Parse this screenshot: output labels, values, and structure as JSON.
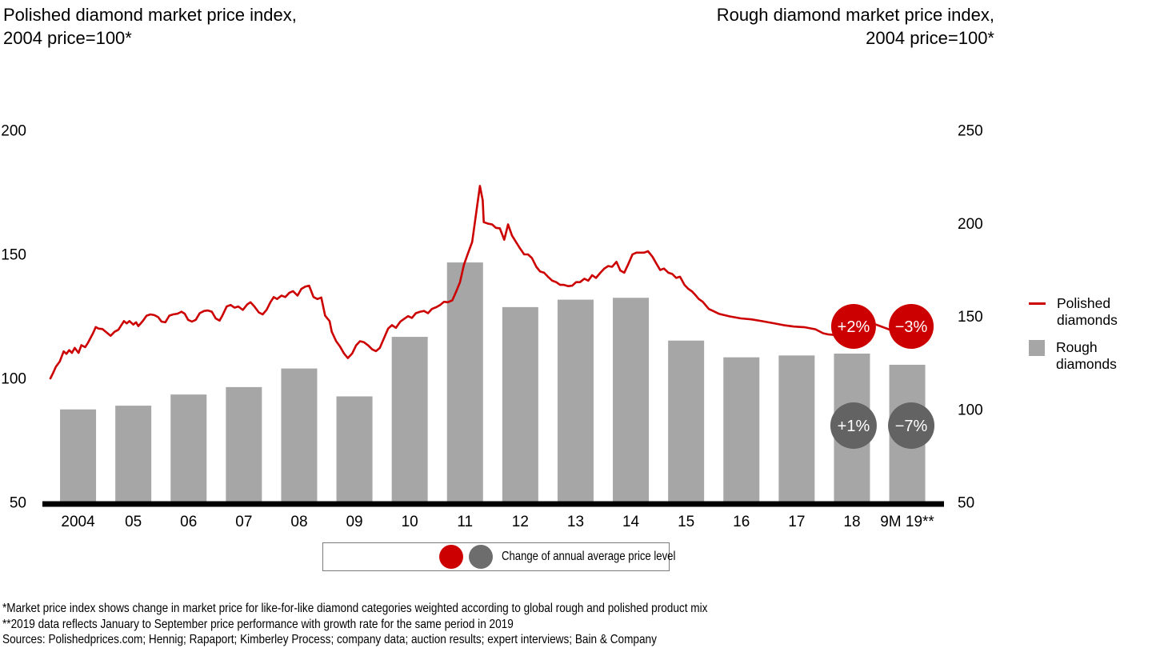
{
  "titles": {
    "left": {
      "line1": "Polished diamond market price index,",
      "line2": "2004 price=100*"
    },
    "right": {
      "line1": "Rough diamond market price index,",
      "line2": "2004 price=100*"
    }
  },
  "chart_data": {
    "type": "combo-bar-line",
    "categories": [
      "2004",
      "05",
      "06",
      "07",
      "08",
      "09",
      "10",
      "11",
      "12",
      "13",
      "14",
      "15",
      "16",
      "17",
      "18",
      "9M 19**"
    ],
    "left_axis": {
      "title": "Polished diamond market price index, 2004 price=100*",
      "min": 50,
      "max": 200,
      "ticks": [
        200,
        150,
        100,
        50
      ]
    },
    "right_axis": {
      "title": "Rough diamond market price index, 2004 price=100*",
      "min": 50,
      "max": 250,
      "ticks": [
        250,
        200,
        150,
        100,
        50
      ]
    },
    "grid": false,
    "legend_position": "right",
    "series": [
      {
        "name": "Rough diamonds",
        "type": "bar",
        "axis": "right",
        "color": "#a6a6a6",
        "values": [
          100,
          102,
          108,
          112,
          122,
          107,
          139,
          179,
          155,
          159,
          160,
          137,
          128,
          129,
          130,
          124
        ]
      },
      {
        "name": "Polished diamonds",
        "type": "line",
        "axis": "left",
        "color": "#cc0000",
        "points": [
          [
            0.0,
            100.0
          ],
          [
            0.05,
            102.3
          ],
          [
            0.1,
            104.7
          ],
          [
            0.17,
            106.8
          ],
          [
            0.24,
            110.9
          ],
          [
            0.29,
            109.9
          ],
          [
            0.34,
            111.4
          ],
          [
            0.39,
            110.3
          ],
          [
            0.44,
            112.3
          ],
          [
            0.51,
            110.3
          ],
          [
            0.56,
            113.4
          ],
          [
            0.63,
            112.6
          ],
          [
            0.68,
            114.4
          ],
          [
            0.77,
            118.2
          ],
          [
            0.82,
            120.7
          ],
          [
            0.87,
            120.1
          ],
          [
            0.94,
            119.9
          ],
          [
            1.09,
            117.2
          ],
          [
            1.16,
            118.8
          ],
          [
            1.23,
            119.6
          ],
          [
            1.33,
            123.1
          ],
          [
            1.38,
            122.2
          ],
          [
            1.43,
            123.1
          ],
          [
            1.5,
            121.7
          ],
          [
            1.55,
            122.6
          ],
          [
            1.59,
            121.1
          ],
          [
            1.67,
            123.1
          ],
          [
            1.74,
            125.3
          ],
          [
            1.81,
            125.8
          ],
          [
            1.88,
            125.5
          ],
          [
            1.95,
            124.7
          ],
          [
            2.01,
            122.9
          ],
          [
            2.08,
            122.6
          ],
          [
            2.15,
            125.3
          ],
          [
            2.22,
            125.8
          ],
          [
            2.3,
            126.1
          ],
          [
            2.37,
            126.9
          ],
          [
            2.43,
            126.1
          ],
          [
            2.49,
            123.6
          ],
          [
            2.56,
            122.9
          ],
          [
            2.63,
            123.6
          ],
          [
            2.7,
            126.3
          ],
          [
            2.78,
            127.2
          ],
          [
            2.85,
            127.4
          ],
          [
            2.92,
            126.9
          ],
          [
            2.99,
            124.2
          ],
          [
            3.06,
            123.3
          ],
          [
            3.11,
            125.3
          ],
          [
            3.19,
            129.0
          ],
          [
            3.26,
            129.6
          ],
          [
            3.33,
            128.5
          ],
          [
            3.4,
            129.0
          ],
          [
            3.48,
            127.6
          ],
          [
            3.56,
            129.8
          ],
          [
            3.62,
            130.7
          ],
          [
            3.69,
            129.0
          ],
          [
            3.77,
            126.6
          ],
          [
            3.84,
            125.8
          ],
          [
            3.91,
            127.6
          ],
          [
            3.98,
            130.7
          ],
          [
            4.04,
            132.8
          ],
          [
            4.1,
            132.0
          ],
          [
            4.18,
            133.4
          ],
          [
            4.25,
            132.8
          ],
          [
            4.32,
            134.5
          ],
          [
            4.39,
            135.2
          ],
          [
            4.47,
            133.4
          ],
          [
            4.54,
            136.1
          ],
          [
            4.61,
            137.0
          ],
          [
            4.68,
            137.4
          ],
          [
            4.76,
            132.8
          ],
          [
            4.83,
            132.0
          ],
          [
            4.9,
            132.6
          ],
          [
            4.97,
            125.3
          ],
          [
            5.05,
            123.1
          ],
          [
            5.09,
            118.8
          ],
          [
            5.17,
            115.0
          ],
          [
            5.24,
            112.8
          ],
          [
            5.31,
            110.1
          ],
          [
            5.38,
            108.2
          ],
          [
            5.46,
            110.1
          ],
          [
            5.53,
            113.3
          ],
          [
            5.6,
            115.0
          ],
          [
            5.67,
            114.6
          ],
          [
            5.75,
            113.3
          ],
          [
            5.82,
            111.7
          ],
          [
            5.89,
            111.0
          ],
          [
            5.96,
            112.3
          ],
          [
            6.03,
            116.0
          ],
          [
            6.11,
            120.1
          ],
          [
            6.18,
            121.5
          ],
          [
            6.25,
            120.4
          ],
          [
            6.33,
            122.9
          ],
          [
            6.4,
            124.0
          ],
          [
            6.47,
            125.1
          ],
          [
            6.54,
            124.4
          ],
          [
            6.61,
            126.3
          ],
          [
            6.69,
            126.9
          ],
          [
            6.76,
            127.2
          ],
          [
            6.83,
            126.3
          ],
          [
            6.9,
            128.0
          ],
          [
            6.98,
            128.7
          ],
          [
            7.05,
            129.6
          ],
          [
            7.12,
            130.9
          ],
          [
            7.19,
            130.7
          ],
          [
            7.27,
            131.5
          ],
          [
            7.34,
            135.0
          ],
          [
            7.41,
            138.8
          ],
          [
            7.48,
            145.8
          ],
          [
            7.55,
            150.2
          ],
          [
            7.63,
            155.0
          ],
          [
            7.7,
            166.4
          ],
          [
            7.77,
            177.6
          ],
          [
            7.82,
            171.8
          ],
          [
            7.84,
            163.0
          ],
          [
            7.92,
            162.4
          ],
          [
            7.99,
            162.1
          ],
          [
            8.06,
            160.7
          ],
          [
            8.13,
            160.5
          ],
          [
            8.21,
            155.9
          ],
          [
            8.28,
            162.1
          ],
          [
            8.35,
            157.6
          ],
          [
            8.42,
            155.1
          ],
          [
            8.5,
            152.3
          ],
          [
            8.57,
            150.0
          ],
          [
            8.64,
            150.0
          ],
          [
            8.71,
            148.5
          ],
          [
            8.79,
            145.0
          ],
          [
            8.86,
            143.1
          ],
          [
            8.93,
            142.6
          ],
          [
            9.0,
            141.0
          ],
          [
            9.08,
            139.4
          ],
          [
            9.15,
            138.8
          ],
          [
            9.22,
            137.7
          ],
          [
            9.29,
            137.7
          ],
          [
            9.37,
            137.2
          ],
          [
            9.44,
            137.4
          ],
          [
            9.51,
            138.8
          ],
          [
            9.58,
            138.8
          ],
          [
            9.66,
            140.2
          ],
          [
            9.73,
            139.4
          ],
          [
            9.8,
            141.6
          ],
          [
            9.87,
            140.5
          ],
          [
            9.95,
            142.6
          ],
          [
            10.02,
            144.3
          ],
          [
            10.09,
            145.3
          ],
          [
            10.16,
            145.0
          ],
          [
            10.24,
            147.0
          ],
          [
            10.31,
            143.5
          ],
          [
            10.38,
            142.6
          ],
          [
            10.45,
            145.9
          ],
          [
            10.53,
            150.0
          ],
          [
            10.6,
            150.7
          ],
          [
            10.67,
            150.7
          ],
          [
            10.74,
            150.7
          ],
          [
            10.81,
            151.3
          ],
          [
            10.89,
            149.1
          ],
          [
            10.96,
            146.4
          ],
          [
            11.03,
            143.7
          ],
          [
            11.1,
            144.3
          ],
          [
            11.18,
            142.6
          ],
          [
            11.25,
            142.1
          ],
          [
            11.32,
            140.5
          ],
          [
            11.39,
            141.0
          ],
          [
            11.47,
            137.7
          ],
          [
            11.54,
            136.1
          ],
          [
            11.61,
            135.0
          ],
          [
            11.68,
            133.3
          ],
          [
            11.73,
            132.0
          ],
          [
            11.8,
            130.9
          ],
          [
            11.91,
            128.0
          ],
          [
            12.1,
            126.0
          ],
          [
            12.29,
            125.0
          ],
          [
            12.49,
            124.2
          ],
          [
            12.68,
            123.8
          ],
          [
            12.87,
            123.1
          ],
          [
            13.07,
            122.3
          ],
          [
            13.26,
            121.5
          ],
          [
            13.45,
            120.9
          ],
          [
            13.65,
            120.6
          ],
          [
            13.84,
            119.8
          ],
          [
            13.98,
            118.2
          ],
          [
            14.08,
            117.7
          ],
          [
            14.27,
            117.4
          ],
          [
            14.46,
            117.7
          ],
          [
            14.66,
            118.2
          ],
          [
            14.9,
            122.0
          ],
          [
            15.2,
            119.5
          ],
          [
            15.5,
            117.5
          ],
          [
            15.75,
            117.0
          ]
        ]
      }
    ],
    "badges": [
      {
        "series": "Polished diamonds",
        "category": "18",
        "label": "+2%",
        "color": "#cc0000",
        "text_color": "#ffffff"
      },
      {
        "series": "Polished diamonds",
        "category": "9M 19**",
        "label": "−3%",
        "color": "#cc0000",
        "text_color": "#ffffff"
      },
      {
        "series": "Rough diamonds",
        "category": "18",
        "label": "+1%",
        "color": "#636363",
        "text_color": "#ffffff"
      },
      {
        "series": "Rough diamonds",
        "category": "9M 19**",
        "label": "−7%",
        "color": "#636363",
        "text_color": "#ffffff"
      }
    ]
  },
  "legend": {
    "items": [
      {
        "label": "Polished diamonds",
        "marker": "line",
        "color": "#cc0000"
      },
      {
        "label": "Rough diamonds",
        "marker": "square",
        "color": "#a6a6a6"
      }
    ]
  },
  "note_box": {
    "label": "Change of annual average price level",
    "marker_colors": [
      "#cc0000",
      "#6d6d6d"
    ]
  },
  "footnotes": [
    "*Market price index shows change in market price for like-for-like diamond categories weighted according to global rough and polished product mix",
    "**2019 data reflects January to September price performance with growth rate for the same period in 2019",
    "Sources: Polishedprices.com; Hennig; Rapaport; Kimberley Process; company data; auction results; expert interviews; Bain & Company"
  ]
}
